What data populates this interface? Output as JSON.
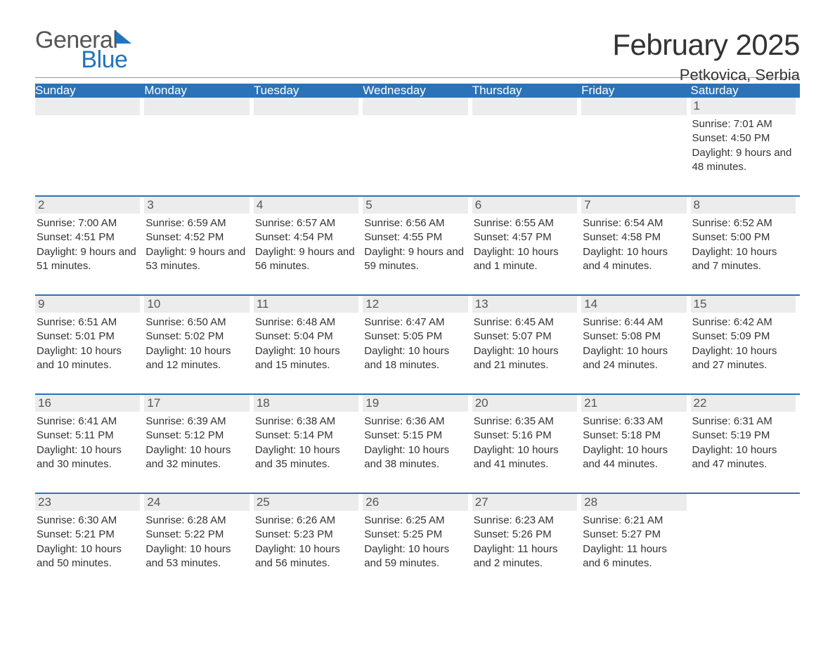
{
  "brand": {
    "general": "General",
    "blue": "Blue"
  },
  "title": "February 2025",
  "location": "Petkovica, Serbia",
  "colors": {
    "header_bg": "#2b73b8",
    "header_text": "#ffffff",
    "daynum_bg": "#ececec",
    "daynum_text": "#555555",
    "body_text": "#333333",
    "rule": "#999999",
    "logo_blue": "#1f74c0",
    "logo_gray": "#555555",
    "page_bg": "#ffffff"
  },
  "typography": {
    "title_fontsize": 42,
    "location_fontsize": 22,
    "header_fontsize": 17,
    "daynum_fontsize": 17,
    "body_fontsize": 15,
    "font_family": "Arial"
  },
  "layout": {
    "columns": 7,
    "weeks": 5
  },
  "day_headers": [
    "Sunday",
    "Monday",
    "Tuesday",
    "Wednesday",
    "Thursday",
    "Friday",
    "Saturday"
  ],
  "weeks": [
    [
      null,
      null,
      null,
      null,
      null,
      null,
      {
        "n": "1",
        "sunrise": "Sunrise: 7:01 AM",
        "sunset": "Sunset: 4:50 PM",
        "daylight": "Daylight: 9 hours and 48 minutes."
      }
    ],
    [
      {
        "n": "2",
        "sunrise": "Sunrise: 7:00 AM",
        "sunset": "Sunset: 4:51 PM",
        "daylight": "Daylight: 9 hours and 51 minutes."
      },
      {
        "n": "3",
        "sunrise": "Sunrise: 6:59 AM",
        "sunset": "Sunset: 4:52 PM",
        "daylight": "Daylight: 9 hours and 53 minutes."
      },
      {
        "n": "4",
        "sunrise": "Sunrise: 6:57 AM",
        "sunset": "Sunset: 4:54 PM",
        "daylight": "Daylight: 9 hours and 56 minutes."
      },
      {
        "n": "5",
        "sunrise": "Sunrise: 6:56 AM",
        "sunset": "Sunset: 4:55 PM",
        "daylight": "Daylight: 9 hours and 59 minutes."
      },
      {
        "n": "6",
        "sunrise": "Sunrise: 6:55 AM",
        "sunset": "Sunset: 4:57 PM",
        "daylight": "Daylight: 10 hours and 1 minute."
      },
      {
        "n": "7",
        "sunrise": "Sunrise: 6:54 AM",
        "sunset": "Sunset: 4:58 PM",
        "daylight": "Daylight: 10 hours and 4 minutes."
      },
      {
        "n": "8",
        "sunrise": "Sunrise: 6:52 AM",
        "sunset": "Sunset: 5:00 PM",
        "daylight": "Daylight: 10 hours and 7 minutes."
      }
    ],
    [
      {
        "n": "9",
        "sunrise": "Sunrise: 6:51 AM",
        "sunset": "Sunset: 5:01 PM",
        "daylight": "Daylight: 10 hours and 10 minutes."
      },
      {
        "n": "10",
        "sunrise": "Sunrise: 6:50 AM",
        "sunset": "Sunset: 5:02 PM",
        "daylight": "Daylight: 10 hours and 12 minutes."
      },
      {
        "n": "11",
        "sunrise": "Sunrise: 6:48 AM",
        "sunset": "Sunset: 5:04 PM",
        "daylight": "Daylight: 10 hours and 15 minutes."
      },
      {
        "n": "12",
        "sunrise": "Sunrise: 6:47 AM",
        "sunset": "Sunset: 5:05 PM",
        "daylight": "Daylight: 10 hours and 18 minutes."
      },
      {
        "n": "13",
        "sunrise": "Sunrise: 6:45 AM",
        "sunset": "Sunset: 5:07 PM",
        "daylight": "Daylight: 10 hours and 21 minutes."
      },
      {
        "n": "14",
        "sunrise": "Sunrise: 6:44 AM",
        "sunset": "Sunset: 5:08 PM",
        "daylight": "Daylight: 10 hours and 24 minutes."
      },
      {
        "n": "15",
        "sunrise": "Sunrise: 6:42 AM",
        "sunset": "Sunset: 5:09 PM",
        "daylight": "Daylight: 10 hours and 27 minutes."
      }
    ],
    [
      {
        "n": "16",
        "sunrise": "Sunrise: 6:41 AM",
        "sunset": "Sunset: 5:11 PM",
        "daylight": "Daylight: 10 hours and 30 minutes."
      },
      {
        "n": "17",
        "sunrise": "Sunrise: 6:39 AM",
        "sunset": "Sunset: 5:12 PM",
        "daylight": "Daylight: 10 hours and 32 minutes."
      },
      {
        "n": "18",
        "sunrise": "Sunrise: 6:38 AM",
        "sunset": "Sunset: 5:14 PM",
        "daylight": "Daylight: 10 hours and 35 minutes."
      },
      {
        "n": "19",
        "sunrise": "Sunrise: 6:36 AM",
        "sunset": "Sunset: 5:15 PM",
        "daylight": "Daylight: 10 hours and 38 minutes."
      },
      {
        "n": "20",
        "sunrise": "Sunrise: 6:35 AM",
        "sunset": "Sunset: 5:16 PM",
        "daylight": "Daylight: 10 hours and 41 minutes."
      },
      {
        "n": "21",
        "sunrise": "Sunrise: 6:33 AM",
        "sunset": "Sunset: 5:18 PM",
        "daylight": "Daylight: 10 hours and 44 minutes."
      },
      {
        "n": "22",
        "sunrise": "Sunrise: 6:31 AM",
        "sunset": "Sunset: 5:19 PM",
        "daylight": "Daylight: 10 hours and 47 minutes."
      }
    ],
    [
      {
        "n": "23",
        "sunrise": "Sunrise: 6:30 AM",
        "sunset": "Sunset: 5:21 PM",
        "daylight": "Daylight: 10 hours and 50 minutes."
      },
      {
        "n": "24",
        "sunrise": "Sunrise: 6:28 AM",
        "sunset": "Sunset: 5:22 PM",
        "daylight": "Daylight: 10 hours and 53 minutes."
      },
      {
        "n": "25",
        "sunrise": "Sunrise: 6:26 AM",
        "sunset": "Sunset: 5:23 PM",
        "daylight": "Daylight: 10 hours and 56 minutes."
      },
      {
        "n": "26",
        "sunrise": "Sunrise: 6:25 AM",
        "sunset": "Sunset: 5:25 PM",
        "daylight": "Daylight: 10 hours and 59 minutes."
      },
      {
        "n": "27",
        "sunrise": "Sunrise: 6:23 AM",
        "sunset": "Sunset: 5:26 PM",
        "daylight": "Daylight: 11 hours and 2 minutes."
      },
      {
        "n": "28",
        "sunrise": "Sunrise: 6:21 AM",
        "sunset": "Sunset: 5:27 PM",
        "daylight": "Daylight: 11 hours and 6 minutes."
      },
      null
    ]
  ]
}
